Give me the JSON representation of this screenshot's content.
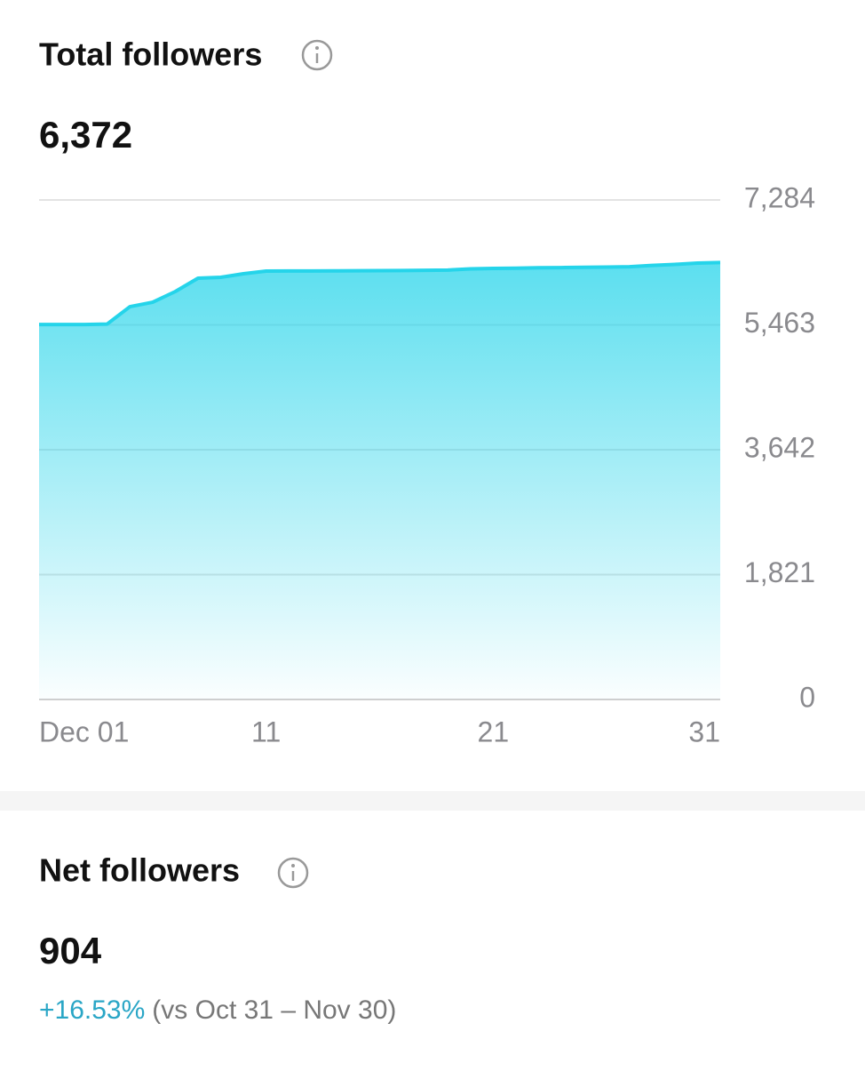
{
  "header": {
    "title": "Total followers",
    "value": "6,372"
  },
  "chart_data": {
    "type": "area",
    "color": "#25d4ea",
    "grid": true,
    "x": [
      1,
      2,
      3,
      4,
      5,
      6,
      7,
      8,
      9,
      10,
      11,
      12,
      13,
      14,
      15,
      16,
      17,
      18,
      19,
      20,
      21,
      22,
      23,
      24,
      25,
      26,
      27,
      28,
      29,
      30,
      31
    ],
    "values": [
      5468,
      5468,
      5468,
      5475,
      5728,
      5793,
      5949,
      6143,
      6156,
      6208,
      6247,
      6248,
      6249,
      6250,
      6252,
      6254,
      6256,
      6258,
      6262,
      6280,
      6286,
      6290,
      6295,
      6298,
      6302,
      6305,
      6310,
      6330,
      6345,
      6364,
      6372
    ],
    "xlim": [
      1,
      31
    ],
    "xticks": [
      {
        "value": 1,
        "label": "Dec 01"
      },
      11,
      21,
      31
    ],
    "ylim": [
      0,
      7284
    ],
    "yticks": [
      0,
      {
        "value": 1821,
        "label": "1,821"
      },
      {
        "value": 3642,
        "label": "3,642"
      },
      {
        "value": 5463,
        "label": "5,463"
      },
      {
        "value": 7284,
        "label": "7,284"
      }
    ]
  },
  "net": {
    "title": "Net followers",
    "value": "904",
    "change": "+16.53%",
    "comparison": "(vs Oct 31 – Nov 30)"
  }
}
